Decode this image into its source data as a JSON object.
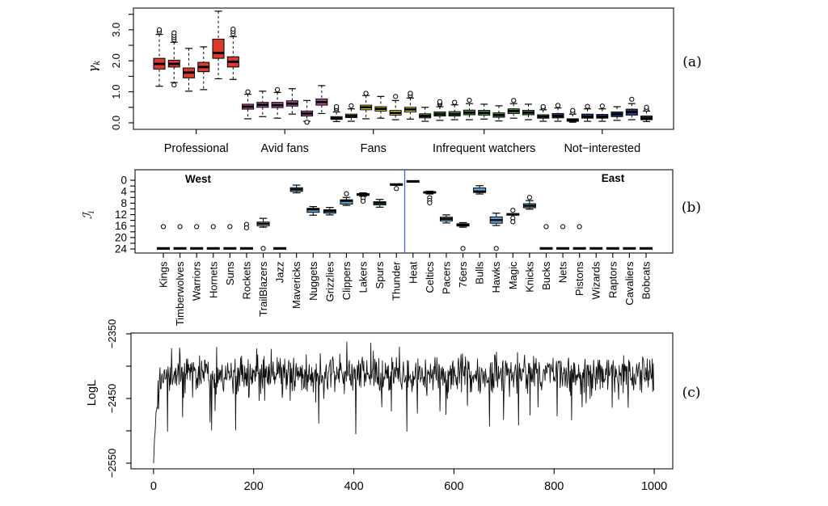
{
  "figure": {
    "background": "#ffffff",
    "line_color": "#000000"
  },
  "chart_data": [
    {
      "panel": "a",
      "panel_label": "(a)",
      "type": "boxplot",
      "ylabel": {
        "base": "γ",
        "sub": "k"
      },
      "axis": {
        "yticks": [
          0,
          0.5,
          1,
          1.5,
          2,
          2.5,
          3,
          3.5
        ],
        "ylabels": [
          [
            0,
            "0.0"
          ],
          [
            1,
            "1.0"
          ],
          [
            2,
            "2.0"
          ],
          [
            3,
            "3.0"
          ]
        ],
        "ylim": [
          -0.21,
          3.7
        ]
      },
      "groups": [
        {
          "label": "Professional",
          "color": "#DC3A2A",
          "boxes": [
            {
              "med": 1.9,
              "q1": 1.73,
              "q3": 2.08,
              "lo": 1.18,
              "hi": 2.85,
              "out": [
                2.93,
                3.0
              ]
            },
            {
              "med": 1.9,
              "q1": 1.8,
              "q3": 2.02,
              "lo": 1.3,
              "hi": 2.6,
              "out": [
                1.22,
                2.68,
                2.75,
                2.82,
                2.9
              ]
            },
            {
              "med": 1.62,
              "q1": 1.45,
              "q3": 1.77,
              "lo": 1.02,
              "hi": 2.4,
              "out": []
            },
            {
              "med": 1.8,
              "q1": 1.65,
              "q3": 1.95,
              "lo": 1.07,
              "hi": 2.45,
              "out": []
            },
            {
              "med": 2.25,
              "q1": 2.08,
              "q3": 2.7,
              "lo": 1.42,
              "hi": 3.6,
              "out": []
            },
            {
              "med": 1.97,
              "q1": 1.8,
              "q3": 2.13,
              "lo": 1.4,
              "hi": 2.78,
              "out": [
                2.87,
                2.95,
                3.02
              ]
            }
          ]
        },
        {
          "label": "Avid fans",
          "color": "#B3539F",
          "boxes": [
            {
              "med": 0.52,
              "q1": 0.44,
              "q3": 0.6,
              "lo": 0.13,
              "hi": 0.92,
              "out": [
                1.0
              ]
            },
            {
              "med": 0.58,
              "q1": 0.5,
              "q3": 0.66,
              "lo": 0.2,
              "hi": 1.02,
              "out": []
            },
            {
              "med": 0.57,
              "q1": 0.49,
              "q3": 0.66,
              "lo": 0.15,
              "hi": 0.98,
              "out": [
                1.07
              ]
            },
            {
              "med": 0.62,
              "q1": 0.54,
              "q3": 0.71,
              "lo": 0.28,
              "hi": 1.1,
              "out": []
            },
            {
              "med": 0.3,
              "q1": 0.22,
              "q3": 0.38,
              "lo": 0.05,
              "hi": 0.72,
              "out": [
                0.02
              ]
            },
            {
              "med": 0.67,
              "q1": 0.57,
              "q3": 0.77,
              "lo": 0.3,
              "hi": 1.2,
              "out": []
            }
          ]
        },
        {
          "label": "Fans",
          "color": "#F0E438",
          "boxes": [
            {
              "med": 0.15,
              "q1": 0.11,
              "q3": 0.2,
              "lo": 0.04,
              "hi": 0.35,
              "out": [
                0.42,
                0.47,
                0.52
              ]
            },
            {
              "med": 0.22,
              "q1": 0.17,
              "q3": 0.28,
              "lo": 0.05,
              "hi": 0.45,
              "out": [
                0.55
              ]
            },
            {
              "med": 0.5,
              "q1": 0.42,
              "q3": 0.57,
              "lo": 0.13,
              "hi": 0.88,
              "out": [
                0.95
              ]
            },
            {
              "med": 0.45,
              "q1": 0.38,
              "q3": 0.52,
              "lo": 0.15,
              "hi": 0.85,
              "out": []
            },
            {
              "med": 0.32,
              "q1": 0.25,
              "q3": 0.4,
              "lo": 0.1,
              "hi": 0.72,
              "out": [
                0.85
              ]
            },
            {
              "med": 0.43,
              "q1": 0.35,
              "q3": 0.5,
              "lo": 0.12,
              "hi": 0.8,
              "out": [
                0.88,
                0.95
              ]
            }
          ]
        },
        {
          "label": "Infrequent watchers",
          "color": "#4EA84E",
          "boxes": [
            {
              "med": 0.22,
              "q1": 0.16,
              "q3": 0.29,
              "lo": 0.05,
              "hi": 0.5,
              "out": []
            },
            {
              "med": 0.28,
              "q1": 0.22,
              "q3": 0.35,
              "lo": 0.08,
              "hi": 0.52,
              "out": [
                0.6,
                0.64,
                0.68
              ]
            },
            {
              "med": 0.28,
              "q1": 0.22,
              "q3": 0.36,
              "lo": 0.1,
              "hi": 0.58,
              "out": [
                0.66
              ]
            },
            {
              "med": 0.33,
              "q1": 0.26,
              "q3": 0.41,
              "lo": 0.1,
              "hi": 0.62,
              "out": [
                0.73
              ]
            },
            {
              "med": 0.32,
              "q1": 0.25,
              "q3": 0.4,
              "lo": 0.12,
              "hi": 0.6,
              "out": []
            },
            {
              "med": 0.25,
              "q1": 0.18,
              "q3": 0.32,
              "lo": 0.06,
              "hi": 0.55,
              "out": []
            },
            {
              "med": 0.38,
              "q1": 0.3,
              "q3": 0.45,
              "lo": 0.15,
              "hi": 0.62,
              "out": [
                0.72
              ]
            },
            {
              "med": 0.33,
              "q1": 0.26,
              "q3": 0.4,
              "lo": 0.1,
              "hi": 0.6,
              "out": []
            },
            {
              "med": 0.2,
              "q1": 0.15,
              "q3": 0.26,
              "lo": 0.05,
              "hi": 0.42,
              "out": [
                0.48,
                0.52
              ]
            }
          ]
        },
        {
          "label": "Not−interested",
          "color": "#2B3F87",
          "boxes": [
            {
              "med": 0.22,
              "q1": 0.16,
              "q3": 0.3,
              "lo": 0.05,
              "hi": 0.48,
              "out": [
                0.56
              ]
            },
            {
              "med": 0.08,
              "q1": 0.05,
              "q3": 0.13,
              "lo": 0.02,
              "hi": 0.28,
              "out": [
                0.34,
                0.4
              ]
            },
            {
              "med": 0.2,
              "q1": 0.15,
              "q3": 0.28,
              "lo": 0.05,
              "hi": 0.45,
              "out": [
                0.53
              ]
            },
            {
              "med": 0.2,
              "q1": 0.15,
              "q3": 0.27,
              "lo": 0.05,
              "hi": 0.45,
              "out": [
                0.54
              ]
            },
            {
              "med": 0.28,
              "q1": 0.2,
              "q3": 0.35,
              "lo": 0.08,
              "hi": 0.52,
              "out": []
            },
            {
              "med": 0.35,
              "q1": 0.25,
              "q3": 0.44,
              "lo": 0.1,
              "hi": 0.62,
              "out": [
                0.76
              ]
            },
            {
              "med": 0.15,
              "q1": 0.1,
              "q3": 0.22,
              "lo": 0.04,
              "hi": 0.38,
              "out": [
                0.44,
                0.5
              ]
            }
          ]
        }
      ]
    },
    {
      "panel": "b",
      "panel_label": "(b)",
      "type": "boxplot",
      "ylabel": {
        "base": "ℐ",
        "sub": "i"
      },
      "axis": {
        "yticks": [
          0,
          2,
          4,
          6,
          8,
          10,
          12,
          14,
          16,
          18,
          20,
          22,
          24
        ],
        "ylabels": [
          [
            0,
            "0"
          ],
          [
            4,
            "4"
          ],
          [
            8,
            "8"
          ],
          [
            12,
            "12"
          ],
          [
            16,
            "16"
          ],
          [
            20,
            "20"
          ],
          [
            24,
            "24"
          ]
        ],
        "y_inverted": true
      },
      "region_labels": {
        "west": "West",
        "east": "East"
      },
      "divider_color": "#4169E1",
      "box_color": "#56A9DC",
      "highlight": {
        "team": "Heat",
        "color": "#E8392C"
      },
      "teams": [
        {
          "name": "Kings",
          "conf": "West",
          "bar": 23.8,
          "out": [
            16.2
          ]
        },
        {
          "name": "Timberwolves",
          "conf": "West",
          "bar": 23.8,
          "out": [
            16.2
          ]
        },
        {
          "name": "Warriors",
          "conf": "West",
          "bar": 23.8,
          "out": [
            16.2
          ]
        },
        {
          "name": "Hornets",
          "conf": "West",
          "bar": 23.8,
          "out": [
            16.2
          ]
        },
        {
          "name": "Suns",
          "conf": "West",
          "bar": 23.8,
          "out": [
            16.2
          ]
        },
        {
          "name": "Rockets",
          "conf": "West",
          "bar": 23.8,
          "out": [
            15.4,
            16.6
          ]
        },
        {
          "name": "TrailBlazers",
          "conf": "West",
          "box": {
            "med": 15.2,
            "q1": 14.6,
            "q3": 15.9,
            "lo": 13.3,
            "hi": 16.4
          },
          "color": "#C9C9C9",
          "out": [
            23.8
          ]
        },
        {
          "name": "Jazz",
          "conf": "West",
          "bar": 23.8,
          "out": []
        },
        {
          "name": "Mavericks",
          "conf": "West",
          "box": {
            "med": 3.2,
            "q1": 2.6,
            "q3": 3.9,
            "lo": 1.7,
            "hi": 4.4
          },
          "out": []
        },
        {
          "name": "Nuggets",
          "conf": "West",
          "box": {
            "med": 10.2,
            "q1": 9.8,
            "q3": 11.2,
            "lo": 9.2,
            "hi": 12.2
          },
          "out": []
        },
        {
          "name": "Grizzlies",
          "conf": "West",
          "box": {
            "med": 10.8,
            "q1": 10.3,
            "q3": 11.5,
            "lo": 9.5,
            "hi": 12.1
          },
          "out": []
        },
        {
          "name": "Clippers",
          "conf": "West",
          "box": {
            "med": 7.2,
            "q1": 6.8,
            "q3": 8.3,
            "lo": 6.0,
            "hi": 8.8
          },
          "out": [
            4.7
          ]
        },
        {
          "name": "Lakers",
          "conf": "West",
          "box": {
            "med": 4.9,
            "q1": 4.7,
            "q3": 5.3,
            "lo": 4.4,
            "hi": 5.6
          },
          "out": [
            6.3,
            7.3
          ]
        },
        {
          "name": "Spurs",
          "conf": "West",
          "box": {
            "med": 8.0,
            "q1": 7.5,
            "q3": 8.6,
            "lo": 6.7,
            "hi": 9.4
          },
          "out": []
        },
        {
          "name": "Thunder",
          "conf": "West",
          "bar": 1.5,
          "out": [
            2.9
          ]
        },
        {
          "name": "Heat",
          "conf": "East",
          "bar": 0.4,
          "out": []
        },
        {
          "name": "Celtics",
          "conf": "East",
          "box": {
            "med": 4.2,
            "q1": 4.0,
            "q3": 4.5,
            "lo": 3.8,
            "hi": 4.8
          },
          "out": [
            6.1,
            7.1,
            7.9
          ]
        },
        {
          "name": "Pacers",
          "conf": "East",
          "box": {
            "med": 13.5,
            "q1": 12.9,
            "q3": 14.2,
            "lo": 12.1,
            "hi": 14.9
          },
          "out": []
        },
        {
          "name": "76ers",
          "conf": "East",
          "box": {
            "med": 15.6,
            "q1": 15.2,
            "q3": 16.0,
            "lo": 14.8,
            "hi": 16.4
          },
          "out": [
            23.8
          ]
        },
        {
          "name": "Bulls",
          "conf": "East",
          "box": {
            "med": 3.9,
            "q1": 2.7,
            "q3": 4.3,
            "lo": 1.9,
            "hi": 4.8
          },
          "out": []
        },
        {
          "name": "Hawks",
          "conf": "East",
          "box": {
            "med": 13.9,
            "q1": 12.8,
            "q3": 15.0,
            "lo": 11.5,
            "hi": 15.8
          },
          "out": [
            23.8
          ]
        },
        {
          "name": "Magic",
          "conf": "East",
          "bar": 11.9,
          "out": [
            10.5,
            13.2,
            14.5
          ]
        },
        {
          "name": "Knicks",
          "conf": "East",
          "box": {
            "med": 8.9,
            "q1": 8.2,
            "q3": 9.6,
            "lo": 7.1,
            "hi": 10.1
          },
          "out": [
            6.0
          ]
        },
        {
          "name": "Bucks",
          "conf": "East",
          "bar": 23.8,
          "out": [
            16.2
          ]
        },
        {
          "name": "Nets",
          "conf": "East",
          "bar": 23.8,
          "out": [
            16.2
          ]
        },
        {
          "name": "Pistons",
          "conf": "East",
          "bar": 23.8,
          "out": [
            16.2
          ]
        },
        {
          "name": "Wizards",
          "conf": "East",
          "bar": 23.8,
          "out": []
        },
        {
          "name": "Raptors",
          "conf": "East",
          "bar": 23.8,
          "out": []
        },
        {
          "name": "Cavaliers",
          "conf": "East",
          "bar": 23.8,
          "out": []
        },
        {
          "name": "Bobcats",
          "conf": "East",
          "bar": 23.8,
          "out": []
        }
      ]
    },
    {
      "panel": "c",
      "panel_label": "(c)",
      "type": "line",
      "ylabel": "LogL",
      "axis": {
        "xticks": [
          [
            0,
            "0"
          ],
          [
            200,
            "200"
          ],
          [
            400,
            "400"
          ],
          [
            600,
            "600"
          ],
          [
            800,
            "800"
          ],
          [
            1000,
            "1000"
          ]
        ],
        "yticks": [
          -2350,
          -2400,
          -2450,
          -2500,
          -2550
        ],
        "ylabels": [
          [
            -2350,
            "−2350"
          ],
          [
            -2450,
            "−2450"
          ],
          [
            -2550,
            "−2550"
          ]
        ],
        "xlim": [
          0,
          1000
        ],
        "ylim": [
          -2550,
          -2350
        ]
      },
      "trace": {
        "n": 1000,
        "start": -2550,
        "stationary_mean": -2412,
        "noise_sd": 15,
        "rise_rate": 6.5,
        "dip_prob": 0.05,
        "dip_max": 68,
        "seed": 20131
      }
    }
  ]
}
